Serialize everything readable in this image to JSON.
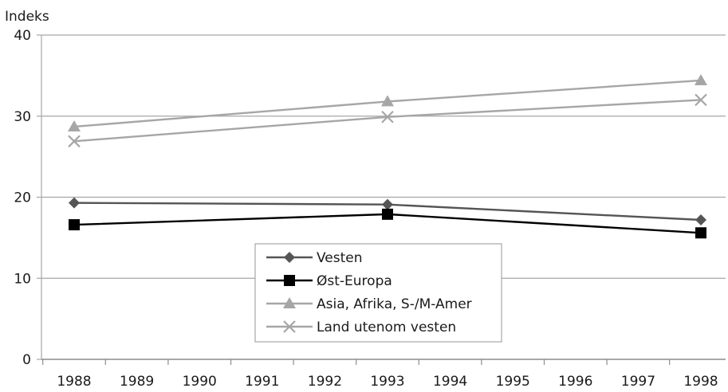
{
  "chart_data": {
    "type": "line",
    "ylabel": "Indeks",
    "xlabel": "",
    "title": "",
    "x": [
      1988,
      1993,
      1998
    ],
    "x_ticks": [
      "1988",
      "1989",
      "1990",
      "1991",
      "1992",
      "1993",
      "1994",
      "1995",
      "1996",
      "1997",
      "1998"
    ],
    "y_ticks": [
      "0",
      "10",
      "20",
      "30",
      "40"
    ],
    "ylim": [
      0,
      40
    ],
    "xlim": [
      1988,
      1998
    ],
    "grid": "horizontal",
    "legend_position": "center-bottom",
    "series": [
      {
        "name": "Vesten",
        "values": [
          19.3,
          19.1,
          17.2
        ],
        "color": "#555555",
        "marker": "diamond"
      },
      {
        "name": "Øst-Europa",
        "values": [
          16.6,
          17.9,
          15.6
        ],
        "color": "#000000",
        "marker": "square"
      },
      {
        "name": "Asia, Afrika, S-/M-Amer",
        "values": [
          28.7,
          31.8,
          34.4
        ],
        "color": "#a6a6a6",
        "marker": "triangle"
      },
      {
        "name": "Land utenom vesten",
        "values": [
          26.9,
          29.9,
          32.0
        ],
        "color": "#a6a6a6",
        "marker": "x"
      }
    ]
  }
}
